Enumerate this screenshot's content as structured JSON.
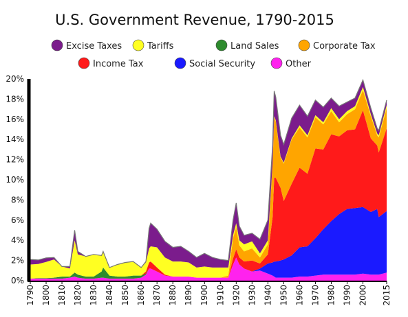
{
  "chart_data": {
    "type": "area",
    "stacked": true,
    "title": "U.S. Government Revenue, 1790-2015",
    "xlabel": "",
    "ylabel": "",
    "xlim": [
      1790,
      2015
    ],
    "ylim": [
      0,
      20
    ],
    "y_tick_labels": [
      "0%",
      "2%",
      "4%",
      "6%",
      "8%",
      "10%",
      "12%",
      "14%",
      "16%",
      "18%",
      "20%"
    ],
    "x_tick_labels": [
      "1790",
      "1800",
      "1810",
      "1820",
      "1830",
      "1840",
      "1850",
      "1860",
      "1870",
      "1880",
      "1890",
      "1900",
      "1910",
      "1920",
      "1930",
      "1940",
      "1950",
      "1960",
      "1970",
      "1980",
      "1990",
      "2000",
      "2015"
    ],
    "grid": false,
    "legend_position": "top",
    "x": [
      1790,
      1795,
      1800,
      1805,
      1810,
      1815,
      1818,
      1820,
      1825,
      1830,
      1835,
      1836,
      1840,
      1845,
      1850,
      1855,
      1860,
      1863,
      1865,
      1866,
      1870,
      1875,
      1880,
      1885,
      1890,
      1895,
      1900,
      1905,
      1910,
      1915,
      1918,
      1920,
      1922,
      1925,
      1930,
      1935,
      1940,
      1943,
      1944,
      1945,
      1948,
      1950,
      1955,
      1960,
      1965,
      1970,
      1975,
      1980,
      1985,
      1990,
      1995,
      2000,
      2005,
      2009,
      2010,
      2015
    ],
    "series": [
      {
        "name": "Other",
        "color": "#ff22ee",
        "values": [
          0.2,
          0.2,
          0.2,
          0.2,
          0.2,
          0.3,
          0.4,
          0.3,
          0.2,
          0.2,
          0.3,
          0.3,
          0.2,
          0.2,
          0.2,
          0.2,
          0.3,
          0.6,
          1.2,
          1.2,
          0.9,
          0.5,
          0.4,
          0.4,
          0.4,
          0.3,
          0.3,
          0.3,
          0.3,
          0.3,
          1.6,
          2.3,
          1.6,
          1.2,
          0.9,
          1.0,
          0.7,
          0.5,
          0.4,
          0.3,
          0.3,
          0.3,
          0.3,
          0.4,
          0.4,
          0.5,
          0.6,
          0.6,
          0.6,
          0.6,
          0.6,
          0.7,
          0.6,
          0.6,
          0.6,
          0.8
        ]
      },
      {
        "name": "Social Security",
        "color": "#1a1aff",
        "values": [
          0,
          0,
          0,
          0,
          0,
          0,
          0,
          0,
          0,
          0,
          0,
          0,
          0,
          0,
          0,
          0,
          0,
          0,
          0,
          0,
          0,
          0,
          0,
          0,
          0,
          0,
          0,
          0,
          0,
          0,
          0,
          0,
          0,
          0,
          0,
          0.2,
          1.0,
          1.3,
          1.5,
          1.6,
          1.7,
          1.8,
          2.2,
          2.9,
          3.0,
          3.7,
          4.5,
          5.3,
          6.0,
          6.5,
          6.6,
          6.6,
          6.2,
          6.5,
          5.7,
          6.1
        ]
      },
      {
        "name": "Land Sales",
        "color": "#2e8b2e",
        "values": [
          0,
          0.05,
          0.05,
          0.1,
          0.2,
          0.1,
          0.4,
          0.3,
          0.2,
          0.2,
          0.6,
          1.0,
          0.3,
          0.2,
          0.2,
          0.3,
          0.2,
          0.1,
          0,
          0,
          0,
          0,
          0,
          0,
          0,
          0,
          0,
          0,
          0,
          0,
          0,
          0,
          0,
          0,
          0,
          0,
          0,
          0,
          0,
          0,
          0,
          0,
          0,
          0,
          0,
          0,
          0,
          0,
          0,
          0,
          0,
          0,
          0,
          0,
          0,
          0
        ]
      },
      {
        "name": "Income Tax",
        "color": "#ff1a1a",
        "values": [
          0,
          0,
          0,
          0,
          0,
          0,
          0,
          0,
          0,
          0,
          0,
          0,
          0,
          0,
          0,
          0,
          0,
          0.2,
          0.6,
          0.7,
          0.4,
          0.1,
          0,
          0,
          0,
          0,
          0,
          0,
          0,
          0,
          0.6,
          0.8,
          0.7,
          0.7,
          1.1,
          0.5,
          0.9,
          4.5,
          8.3,
          8.3,
          7.2,
          5.8,
          7.1,
          7.9,
          7.2,
          8.9,
          7.9,
          8.6,
          7.7,
          7.8,
          7.8,
          9.6,
          7.3,
          6.3,
          6.4,
          8.2
        ]
      },
      {
        "name": "Corporate Tax",
        "color": "#ffa500",
        "values": [
          0,
          0,
          0,
          0,
          0,
          0,
          0,
          0,
          0,
          0,
          0,
          0,
          0,
          0,
          0,
          0,
          0,
          0,
          0,
          0,
          0,
          0,
          0,
          0,
          0,
          0,
          0,
          0,
          0,
          0.2,
          2.0,
          2.2,
          1.2,
          1.0,
          1.2,
          0.6,
          1.0,
          5.2,
          6.0,
          5.6,
          3.0,
          3.7,
          4.4,
          4.0,
          3.6,
          3.1,
          2.5,
          2.3,
          1.4,
          1.6,
          2.0,
          2.0,
          2.2,
          1.0,
          1.5,
          2.0
        ]
      },
      {
        "name": "Tariffs",
        "color": "#ffff22",
        "values": [
          1.4,
          1.4,
          1.6,
          1.8,
          1.0,
          0.8,
          3.2,
          2.0,
          2.0,
          2.2,
          1.6,
          1.6,
          0.8,
          1.2,
          1.4,
          1.4,
          0.8,
          0.9,
          1.4,
          1.5,
          2.0,
          1.7,
          1.5,
          1.5,
          1.4,
          1.0,
          1.1,
          1.0,
          1.0,
          0.8,
          0.3,
          0.4,
          0.5,
          0.7,
          0.7,
          0.4,
          0.4,
          0.1,
          0.1,
          0.1,
          0.1,
          0.1,
          0.1,
          0.2,
          0.2,
          0.2,
          0.2,
          0.3,
          0.3,
          0.3,
          0.3,
          0.3,
          0.2,
          0.2,
          0.2,
          0.3
        ]
      },
      {
        "name": "Excise Taxes",
        "color": "#7b1c8c",
        "values": [
          0.5,
          0.4,
          0.4,
          0.2,
          0,
          0.2,
          1.0,
          0.3,
          0,
          0,
          0,
          0,
          0,
          0,
          0,
          0,
          0,
          0.1,
          2.0,
          2.3,
          1.8,
          1.6,
          1.4,
          1.5,
          1.1,
          1.0,
          1.3,
          1.0,
          0.8,
          0.7,
          1.5,
          2.0,
          1.4,
          0.9,
          0.8,
          1.4,
          2.0,
          1.8,
          2.5,
          2.3,
          2.1,
          1.8,
          2.0,
          2.0,
          1.9,
          1.5,
          1.5,
          1.0,
          1.3,
          0.9,
          0.8,
          0.7,
          0.6,
          0.5,
          0.5,
          0.5
        ]
      }
    ]
  }
}
